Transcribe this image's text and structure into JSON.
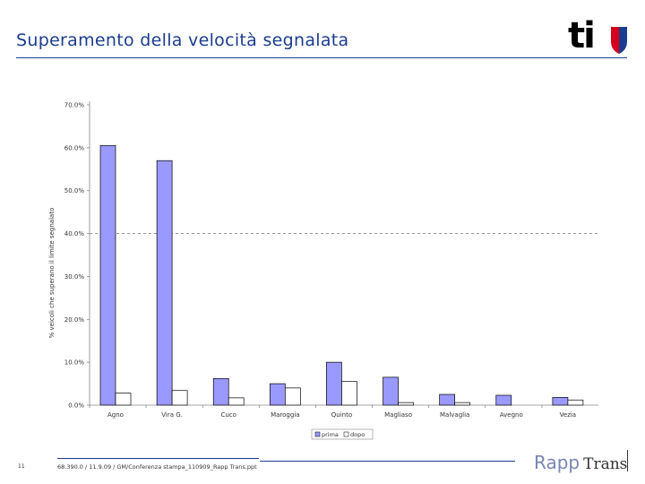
{
  "header": {
    "title": "Superamento della velocità segnalata",
    "logo_text": "ti",
    "logo_colors": [
      "#d6001c",
      "#1b3d8f"
    ]
  },
  "footer": {
    "page_number": "11",
    "reference": "68.390.0 / 11.9.09 / GM/Conferenza stampa_110909_Rapp Trans.ppt",
    "brand_primary": "Rapp",
    "brand_secondary": "Trans"
  },
  "chart_data": {
    "type": "bar",
    "ylabel": "% veicoli che superano il limite segnalato",
    "ylim": [
      0,
      70
    ],
    "yticks": [
      0,
      10,
      20,
      30,
      40,
      50,
      60,
      70
    ],
    "ytick_labels": [
      "0.0%",
      "10.0%",
      "20.0%",
      "30.0%",
      "40.0%",
      "50.0%",
      "60.0%",
      "70.0%"
    ],
    "reference_line": 40,
    "categories": [
      "Agno",
      "Vira G.",
      "Cuco",
      "Maroggia",
      "Quinto",
      "Magliaso",
      "Malvaglia",
      "Avegno",
      "Vezia"
    ],
    "series": [
      {
        "name": "prima",
        "color": "#9999ff",
        "values": [
          60.5,
          57.0,
          6.2,
          5.0,
          10.0,
          6.5,
          2.5,
          2.3,
          1.8
        ]
      },
      {
        "name": "dopo",
        "color": "#ffffff",
        "values": [
          2.8,
          3.4,
          1.7,
          4.0,
          5.5,
          0.6,
          0.6,
          0.0,
          1.2
        ]
      }
    ],
    "grid": false,
    "legend_position": "bottom"
  }
}
